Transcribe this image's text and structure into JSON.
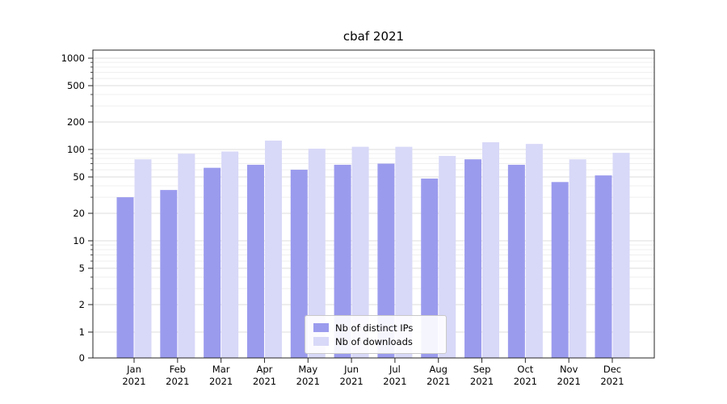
{
  "chart_data": {
    "type": "bar",
    "title": "cbaf 2021",
    "categories": [
      "Jan",
      "Feb",
      "Mar",
      "Apr",
      "May",
      "Jun",
      "Jul",
      "Aug",
      "Sep",
      "Oct",
      "Nov",
      "Dec"
    ],
    "year": "2021",
    "series": [
      {
        "name": "Nb of distinct IPs",
        "color": "#9b9bee",
        "values": [
          30,
          36,
          63,
          68,
          60,
          68,
          70,
          48,
          78,
          68,
          44,
          52
        ]
      },
      {
        "name": "Nb of downloads",
        "color": "#d8d8f8",
        "values": [
          78,
          90,
          95,
          125,
          102,
          107,
          107,
          85,
          120,
          115,
          78,
          92
        ]
      }
    ],
    "yticks": [
      0,
      1,
      2,
      5,
      10,
      20,
      50,
      100,
      200,
      500,
      1000
    ],
    "yscale": "symlog",
    "ylim": [
      0,
      1250
    ],
    "xlabel": "",
    "ylabel": "",
    "grid": true,
    "legend_position": "lower center",
    "grid_major_color": "#dcdcdc",
    "grid_minor_color": "#efefef",
    "axis_color": "#262626"
  }
}
